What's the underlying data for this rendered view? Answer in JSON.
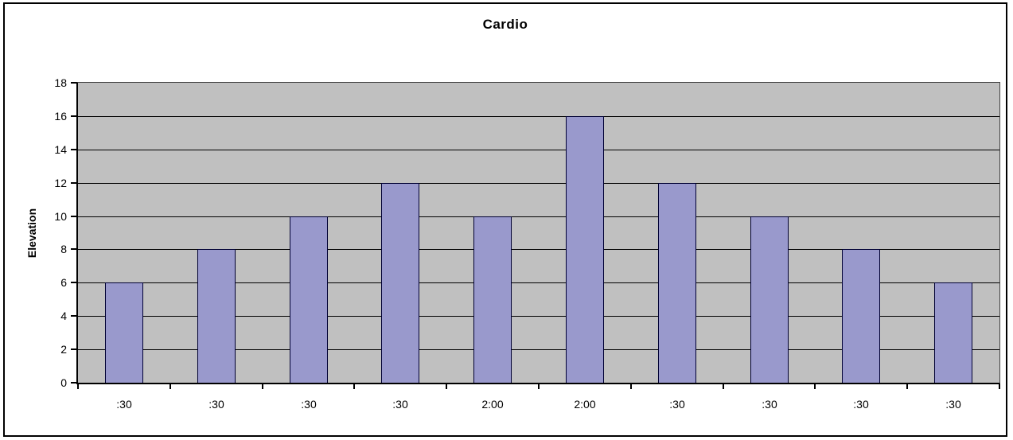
{
  "chart_data": {
    "type": "bar",
    "title": "Cardio",
    "xlabel": "",
    "ylabel": "Elevation",
    "categories": [
      ":30",
      ":30",
      ":30",
      ":30",
      "2:00",
      "2:00",
      ":30",
      ":30",
      ":30",
      ":30"
    ],
    "values": [
      6,
      8,
      10,
      12,
      10,
      16,
      12,
      10,
      8,
      6
    ],
    "yticks": [
      "0",
      "2",
      "4",
      "6",
      "8",
      "10",
      "12",
      "14",
      "16",
      "18"
    ],
    "ylim": [
      0,
      18
    ],
    "ytick_step": 2,
    "grid": true,
    "legend_position": "none",
    "colors": {
      "bar_fill": "#9999CC",
      "bar_border": "#000033",
      "plot_background": "#C0C0C0",
      "gridline": "#000000",
      "frame_border": "#000000",
      "page_background": "#FFFFFF",
      "text": "#000000"
    }
  }
}
